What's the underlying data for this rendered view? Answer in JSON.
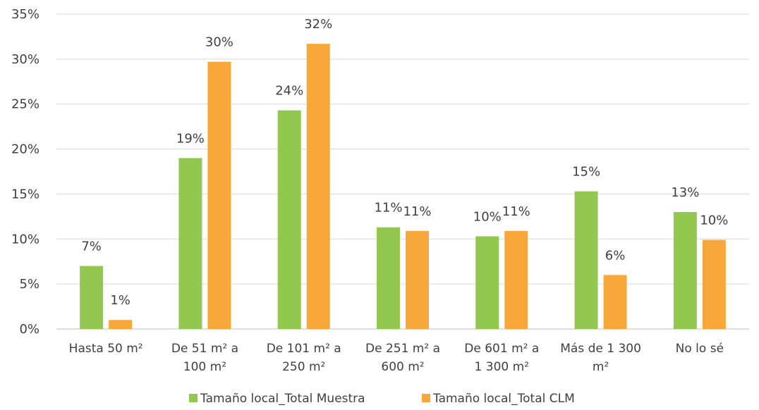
{
  "chart_data": {
    "type": "bar",
    "title": "",
    "xlabel": "",
    "ylabel": "",
    "ylim": [
      0,
      35
    ],
    "yticks": [
      0,
      5,
      10,
      15,
      20,
      25,
      30,
      35
    ],
    "ytick_labels": [
      "0%",
      "5%",
      "10%",
      "15%",
      "20%",
      "25%",
      "30%",
      "35%"
    ],
    "grid": true,
    "legend_position": "bottom",
    "categories": [
      [
        "Hasta 50 m²"
      ],
      [
        "De 51 m² a",
        "100 m²"
      ],
      [
        "De 101 m² a",
        "250 m²"
      ],
      [
        "De 251 m² a",
        "600 m²"
      ],
      [
        "De 601 m² a",
        "1 300 m²"
      ],
      [
        "Más de 1 300",
        "m²"
      ],
      [
        "No lo sé"
      ]
    ],
    "series": [
      {
        "name": "Tamaño local_Total Muestra",
        "color": "#92c84f",
        "values": [
          7.0,
          19.0,
          24.3,
          11.3,
          10.3,
          15.3,
          13.0
        ],
        "labels": [
          "7%",
          "19%",
          "24%",
          "11%",
          "10%",
          "15%",
          "13%"
        ]
      },
      {
        "name": "Tamaño local_Total CLM",
        "color": "#f8a83a",
        "values": [
          1.0,
          29.7,
          31.7,
          10.9,
          10.9,
          6.0,
          9.9
        ],
        "labels": [
          "1%",
          "30%",
          "32%",
          "11%",
          "11%",
          "6%",
          "10%"
        ]
      }
    ]
  }
}
